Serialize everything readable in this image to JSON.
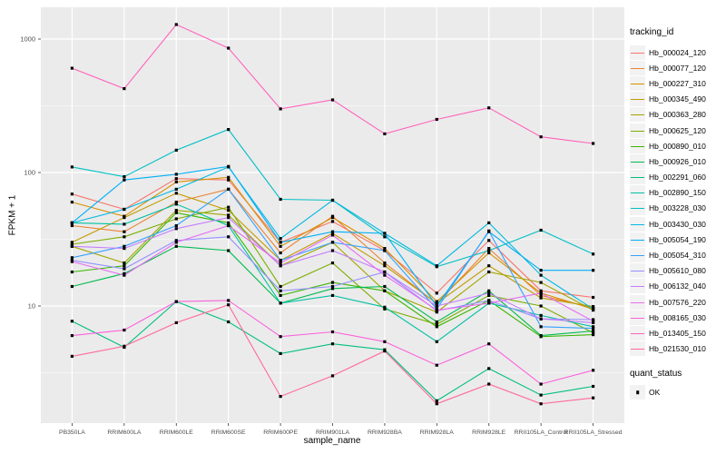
{
  "chart_data": {
    "type": "line",
    "title": "",
    "xlabel": "sample_name",
    "ylabel": "FPKM + 1",
    "yscale": "log10",
    "ylim": [
      1.6,
      1730
    ],
    "grid": true,
    "panel_bg": "#EBEBEB",
    "grid_color": "#FFFFFF",
    "tick_color": "#333333",
    "tick_label_color": "#4D4D4D",
    "marker_color": "#000000",
    "yticks": [
      {
        "label": "1000",
        "value": 1000
      },
      {
        "label": "100",
        "value": 100
      },
      {
        "label": "10",
        "value": 10
      }
    ],
    "minor_gridlines": [
      3.162,
      31.62,
      316.2
    ],
    "categories": [
      "PB350LA",
      "RRIM600LA",
      "RRIM600LE",
      "RRIM600SE",
      "RRIM600PE",
      "RRIM901LA",
      "RRIM928BA",
      "RRIM928LA",
      "RRIM928LE",
      "RRII105LA_Control",
      "RRII105LA_Stressed"
    ],
    "legend": {
      "title": "tracking_id",
      "position": "right"
    },
    "quant_status": {
      "title": "quant_status",
      "items": [
        {
          "label": "OK",
          "marker": "black-square"
        }
      ]
    },
    "series": [
      {
        "name": "Hb_000024_120",
        "color": "#F8766D",
        "values": [
          69,
          53,
          90,
          88,
          30,
          43,
          26,
          12.5,
          31,
          13,
          11.6
        ]
      },
      {
        "name": "Hb_000077_120",
        "color": "#EA8331",
        "values": [
          40,
          36,
          60,
          75,
          25,
          47,
          21,
          10.4,
          27,
          12,
          9.7
        ]
      },
      {
        "name": "Hb_000227_310",
        "color": "#D89000",
        "values": [
          60,
          47,
          85,
          92,
          28,
          46,
          27,
          10.8,
          25,
          12.5,
          9.5
        ]
      },
      {
        "name": "Hb_000345_490",
        "color": "#C09B00",
        "values": [
          30,
          46,
          70,
          52,
          22,
          35,
          20,
          10.5,
          20,
          11.5,
          9.9
        ]
      },
      {
        "name": "Hb_000363_280",
        "color": "#A3A500",
        "values": [
          28,
          21,
          52,
          48,
          20,
          30,
          13,
          9,
          18,
          15,
          9.3
        ]
      },
      {
        "name": "Hb_000625_120",
        "color": "#7CAE00",
        "values": [
          29,
          33,
          45,
          55,
          14,
          21,
          9.5,
          7.3,
          12,
          10,
          6.3
        ]
      },
      {
        "name": "Hb_000890_010",
        "color": "#39B600",
        "values": [
          18,
          20,
          50,
          42,
          12,
          15,
          13,
          7,
          11,
          5.9,
          6.1
        ]
      },
      {
        "name": "Hb_000926_010",
        "color": "#00BB4E",
        "values": [
          14,
          17.5,
          28,
          26,
          10.5,
          13.5,
          14,
          7.6,
          13,
          6,
          6.5
        ]
      },
      {
        "name": "Hb_002291_060",
        "color": "#00BF7D",
        "values": [
          7.7,
          4.9,
          10.8,
          7.6,
          4.4,
          5.2,
          4.7,
          1.95,
          3.4,
          2.15,
          2.5
        ]
      },
      {
        "name": "Hb_002890_150",
        "color": "#00C1A3",
        "values": [
          42,
          41,
          58,
          40,
          10.5,
          12,
          9.8,
          5.4,
          10.5,
          8.5,
          7
        ]
      },
      {
        "name": "Hb_003228_030",
        "color": "#00BFC4",
        "values": [
          110,
          93,
          147,
          210,
          63,
          62,
          33,
          19.7,
          26,
          37,
          24.5
        ]
      },
      {
        "name": "Hb_003430_030",
        "color": "#00BAE0",
        "values": [
          42,
          53,
          75,
          110,
          32,
          62,
          35,
          20,
          42,
          17,
          9.5
        ]
      },
      {
        "name": "Hb_005054_190",
        "color": "#00B0F6",
        "values": [
          42,
          88,
          97,
          111,
          30,
          36,
          35,
          10,
          36,
          18.5,
          18.5
        ]
      },
      {
        "name": "Hb_005054_310",
        "color": "#35A2FF",
        "values": [
          23,
          28,
          40,
          75,
          22,
          30,
          26,
          9.5,
          36.5,
          7,
          6.8
        ]
      },
      {
        "name": "Hb_005610_080",
        "color": "#9590FF",
        "values": [
          22,
          19,
          31,
          33,
          13,
          14,
          18,
          9.2,
          11,
          8,
          7.9
        ]
      },
      {
        "name": "Hb_006132_040",
        "color": "#C77CFF",
        "values": [
          28,
          27,
          38,
          46,
          20,
          26,
          18,
          10,
          12.5,
          8,
          7.5
        ]
      },
      {
        "name": "Hb_007576_220",
        "color": "#E76BF3",
        "values": [
          21.5,
          17,
          30,
          40,
          21,
          34,
          17,
          9.3,
          10.5,
          12.5,
          7.7
        ]
      },
      {
        "name": "Hb_008165_030",
        "color": "#FA62DB",
        "values": [
          6,
          6.6,
          10.8,
          11,
          5.9,
          6.4,
          5.4,
          3.6,
          5.2,
          2.6,
          3.3
        ]
      },
      {
        "name": "Hb_013405_150",
        "color": "#FF62BC",
        "values": [
          605,
          425,
          1285,
          855,
          300,
          350,
          195,
          250,
          305,
          185,
          165
        ]
      },
      {
        "name": "Hb_021530_010",
        "color": "#FF6A98",
        "values": [
          4.2,
          5,
          7.5,
          10.2,
          2.1,
          3,
          4.6,
          1.85,
          2.6,
          1.85,
          2.05
        ]
      }
    ]
  }
}
